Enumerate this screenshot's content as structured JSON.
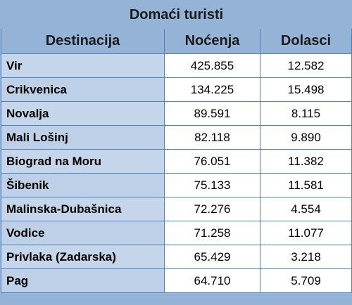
{
  "table": {
    "title": "Domaći turisti",
    "columns": [
      "Destinacija",
      "Noćenja",
      "Dolasci"
    ],
    "rows": [
      {
        "destination": "Vir",
        "nights": "425.855",
        "arrivals": "12.582"
      },
      {
        "destination": "Crikvenica",
        "nights": "134.225",
        "arrivals": "15.498"
      },
      {
        "destination": "Novalja",
        "nights": "89.591",
        "arrivals": "8.115"
      },
      {
        "destination": "Mali Lošinj",
        "nights": "82.118",
        "arrivals": "9.890"
      },
      {
        "destination": "Biograd na Moru",
        "nights": "76.051",
        "arrivals": "11.382"
      },
      {
        "destination": "Šibenik",
        "nights": "75.133",
        "arrivals": "11.581"
      },
      {
        "destination": "Malinska-Dubašnica",
        "nights": "72.276",
        "arrivals": "4.554"
      },
      {
        "destination": "Vodice",
        "nights": "71.258",
        "arrivals": "11.077"
      },
      {
        "destination": "Privlaka (Zadarska)",
        "nights": "65.429",
        "arrivals": "3.218"
      },
      {
        "destination": "Pag",
        "nights": "64.710",
        "arrivals": "5.709"
      }
    ]
  },
  "colors": {
    "header_bg": "#95b3d7",
    "label_bg": "#c5d5ea",
    "border": "#4f81bd",
    "cell_bg": "#ffffff"
  }
}
